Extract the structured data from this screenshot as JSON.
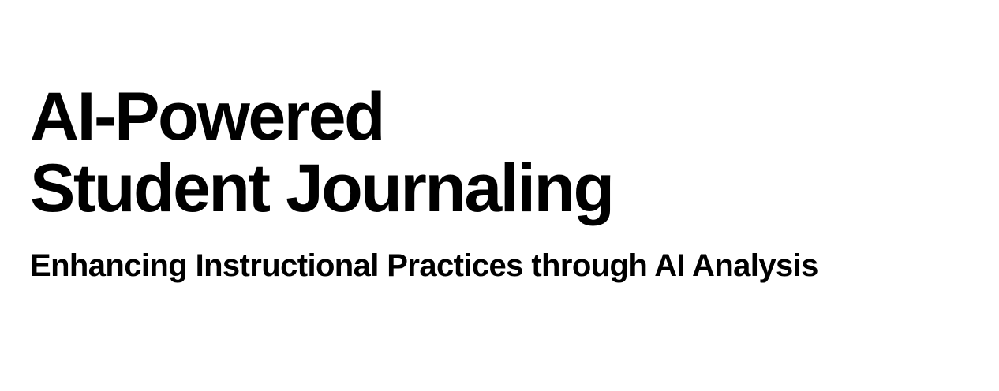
{
  "slide": {
    "title_line1": "AI-Powered",
    "title_line2": "Student Journaling",
    "subtitle": "Enhancing Instructional Practices through AI Analysis"
  },
  "colors": {
    "background": "#ffffff",
    "text": "#000000"
  }
}
